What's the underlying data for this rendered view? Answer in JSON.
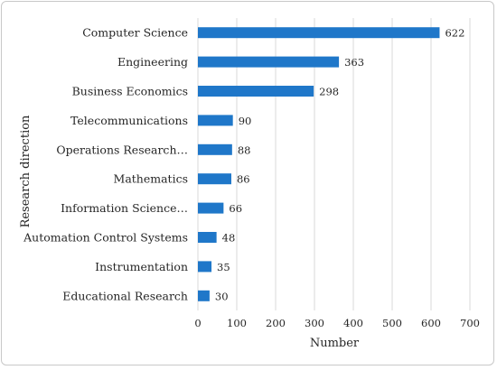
{
  "chart_data": {
    "type": "bar",
    "orientation": "horizontal",
    "categories": [
      "Computer Science",
      "Engineering",
      "Business Economics",
      "Telecommunications",
      "Operations Research…",
      "Mathematics",
      "Information Science…",
      "Automation Control Systems",
      "Instrumentation",
      "Educational Research"
    ],
    "values": [
      622,
      363,
      298,
      90,
      88,
      86,
      66,
      48,
      35,
      30
    ],
    "xlabel": "Number",
    "ylabel": "Research direction",
    "xlim": [
      0,
      700
    ],
    "xticks": [
      "0",
      "100",
      "200",
      "300",
      "400",
      "500",
      "600",
      "700"
    ],
    "grid": true,
    "bar_color": "#1f77c9",
    "data_labels": true
  }
}
